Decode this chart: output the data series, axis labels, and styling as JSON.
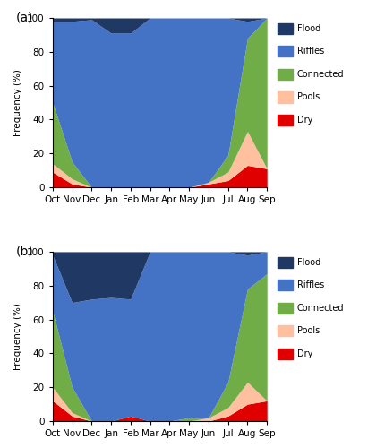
{
  "months": [
    "Oct",
    "Nov",
    "Dec",
    "Jan",
    "Feb",
    "Mar",
    "Apr",
    "May",
    "Jun",
    "Jul",
    "Aug",
    "Sep"
  ],
  "colors": {
    "Flood": "#1f3864",
    "Riffles": "#4472c4",
    "Connected": "#70ad47",
    "Pools": "#ffc09f",
    "Dry": "#e00000"
  },
  "legend_labels": [
    "Flood",
    "Riffles",
    "Connected",
    "Pools",
    "Dry"
  ],
  "legend_colors": [
    "#1f3864",
    "#4472c4",
    "#70ad47",
    "#ffc09f",
    "#e00000"
  ],
  "panel_a": {
    "Dry": [
      9,
      2,
      0,
      0,
      0,
      0,
      0,
      0,
      2,
      4,
      13,
      11
    ],
    "Pools": [
      5,
      3,
      0,
      0,
      0,
      0,
      0,
      0,
      1,
      5,
      20,
      0
    ],
    "Connected": [
      36,
      10,
      0,
      0,
      0,
      0,
      0,
      0,
      0,
      10,
      55,
      89
    ],
    "Riffles": [
      48,
      83,
      99,
      91,
      91,
      100,
      100,
      100,
      97,
      81,
      10,
      0
    ],
    "Flood": [
      2,
      2,
      1,
      9,
      9,
      0,
      0,
      0,
      0,
      0,
      2,
      0
    ]
  },
  "panel_b": {
    "Dry": [
      12,
      3,
      0,
      0,
      3,
      0,
      0,
      0,
      0,
      3,
      10,
      12
    ],
    "Pools": [
      8,
      2,
      0,
      0,
      0,
      0,
      0,
      0,
      2,
      5,
      13,
      0
    ],
    "Connected": [
      45,
      15,
      0,
      0,
      0,
      0,
      0,
      2,
      0,
      15,
      55,
      75
    ],
    "Riffles": [
      33,
      50,
      72,
      73,
      69,
      100,
      100,
      98,
      100,
      77,
      20,
      13
    ],
    "Flood": [
      2,
      30,
      28,
      27,
      28,
      0,
      0,
      0,
      0,
      0,
      2,
      0
    ]
  },
  "ylabel": "Frequency (%)",
  "ylim": [
    0,
    100
  ],
  "yticks": [
    0,
    20,
    40,
    60,
    80,
    100
  ],
  "label_a": "(a)",
  "label_b": "(b)",
  "stack_order": [
    "Dry",
    "Pools",
    "Connected",
    "Riffles",
    "Flood"
  ]
}
